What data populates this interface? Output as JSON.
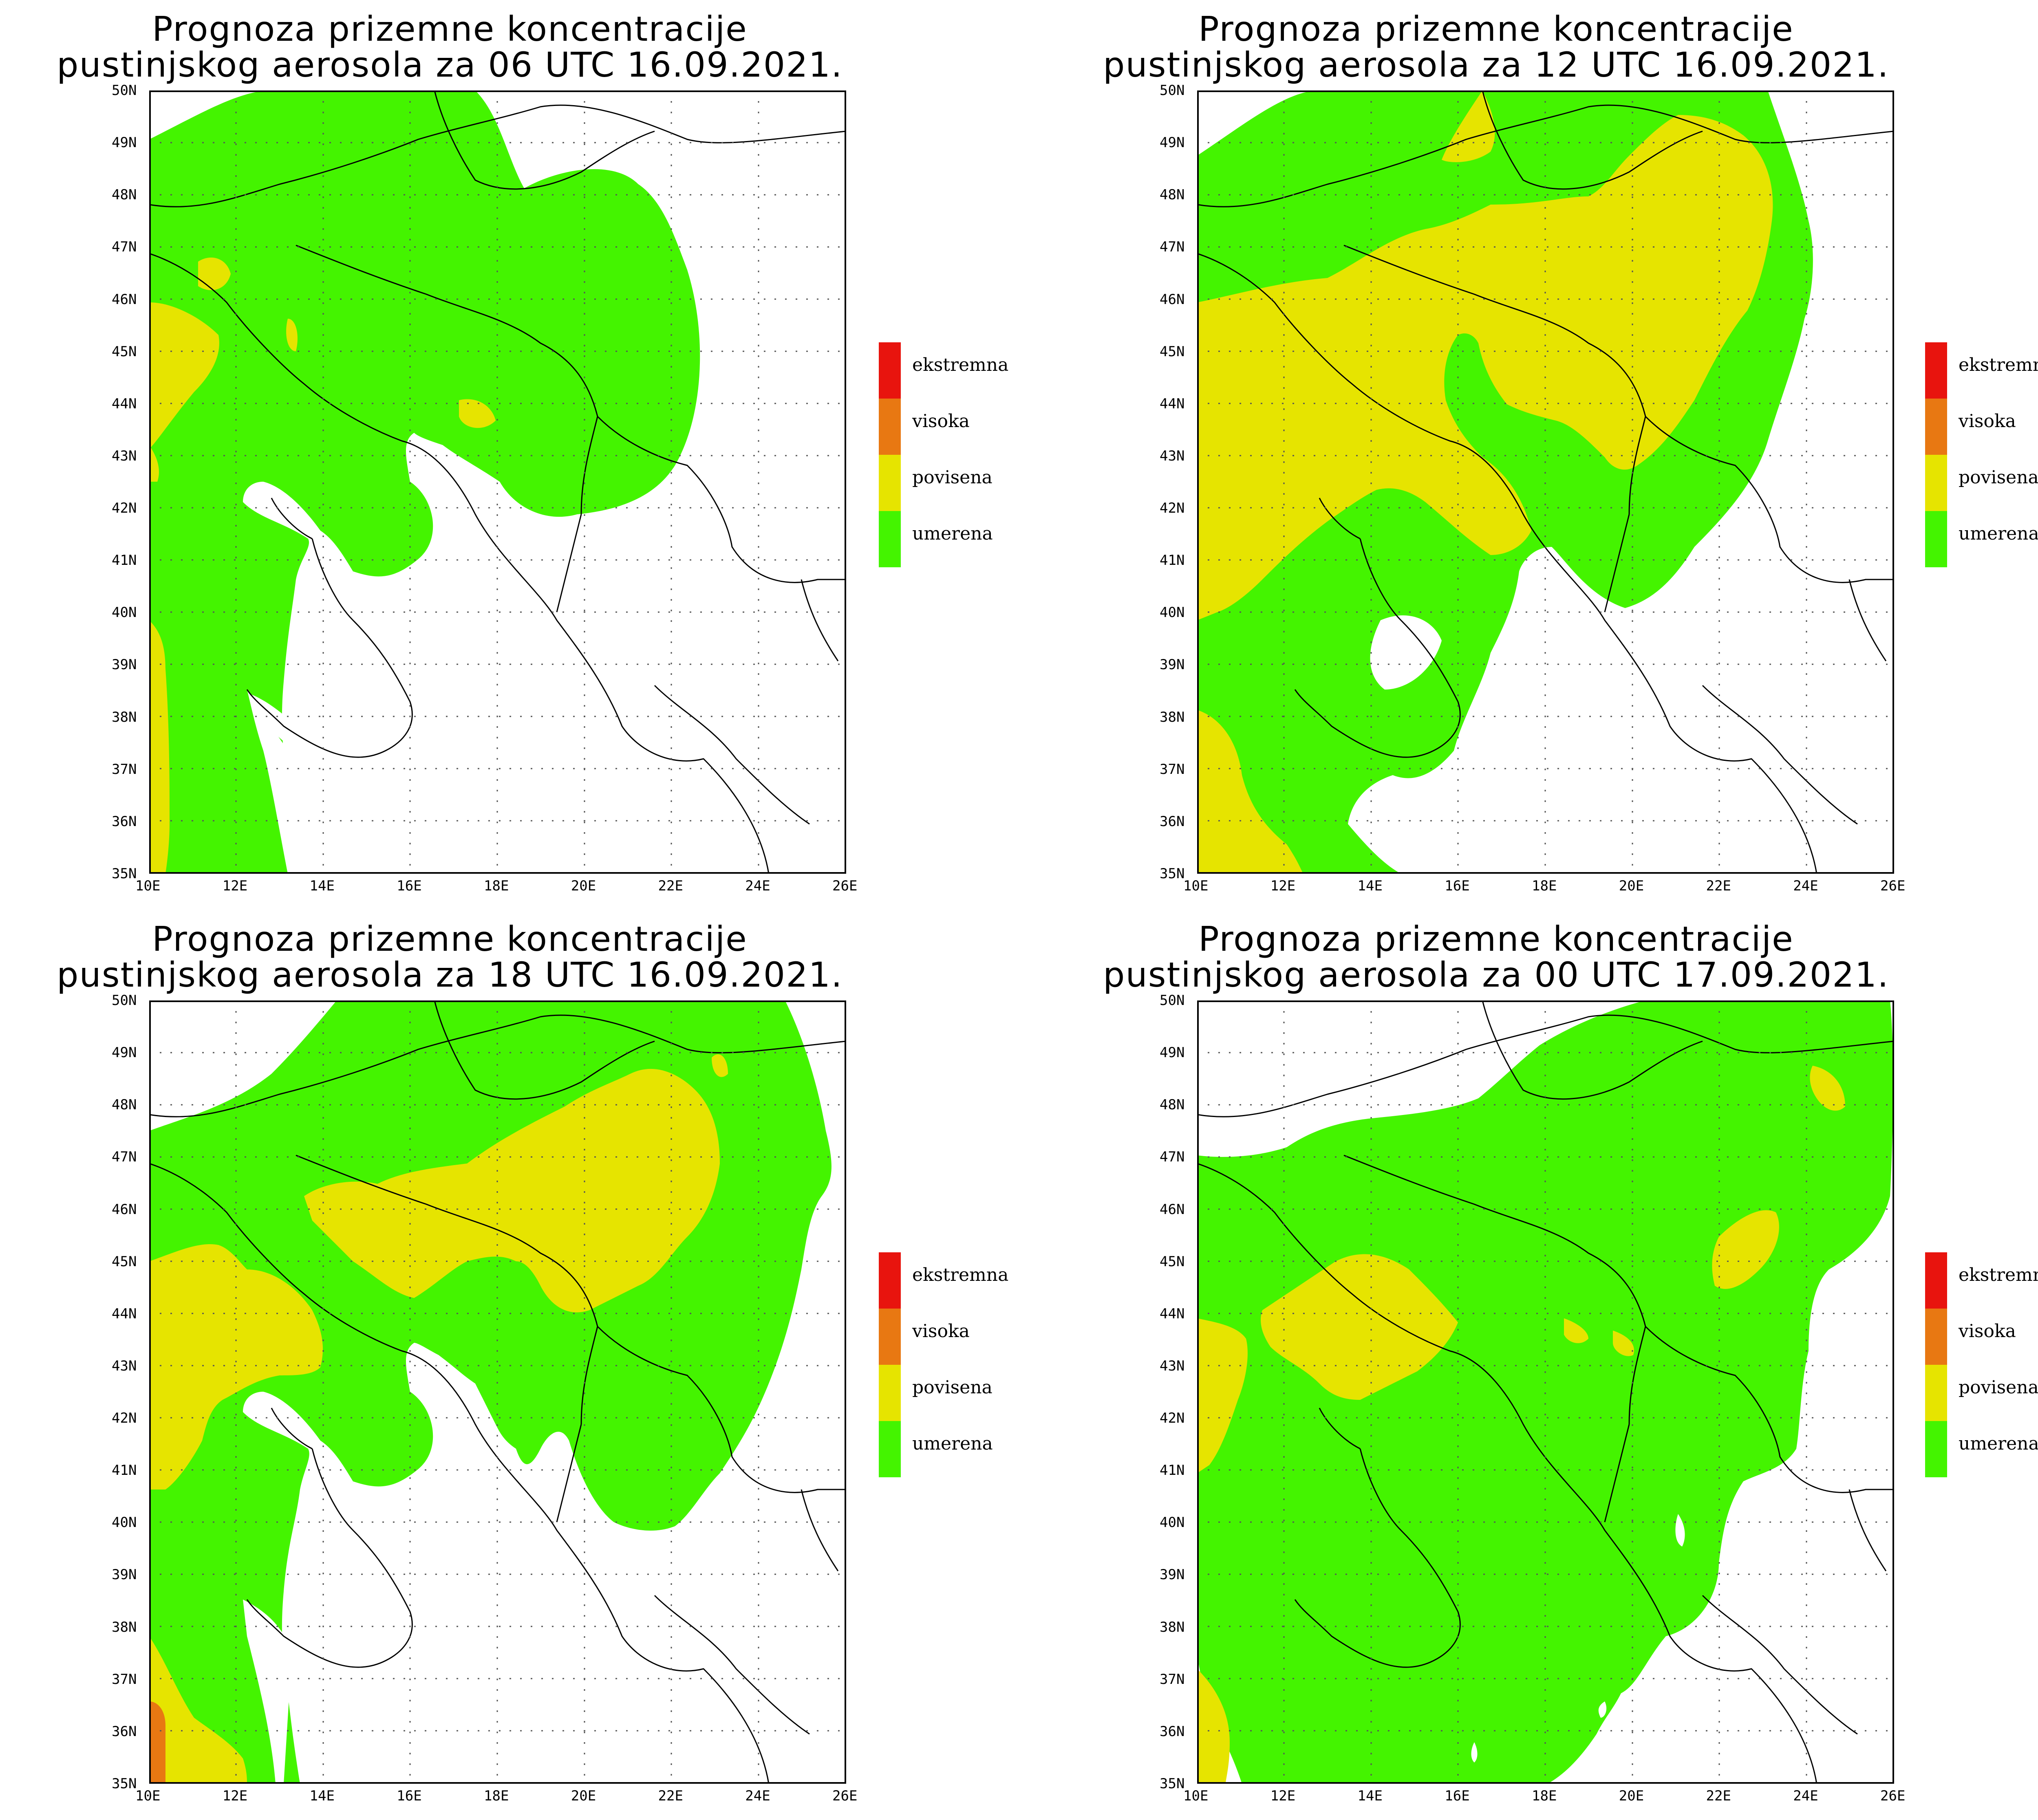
{
  "legend": {
    "items": [
      {
        "label": "ekstremna",
        "color": "#e8140e"
      },
      {
        "label": "visoka",
        "color": "#e87812"
      },
      {
        "label": "povisena",
        "color": "#e6e400"
      },
      {
        "label": "umerena",
        "color": "#44f400"
      }
    ]
  },
  "axes": {
    "lat_labels": [
      "35N",
      "36N",
      "37N",
      "38N",
      "39N",
      "40N",
      "41N",
      "42N",
      "43N",
      "44N",
      "45N",
      "46N",
      "47N",
      "48N",
      "49N",
      "50N"
    ],
    "lon_labels": [
      "10E",
      "12E",
      "14E",
      "16E",
      "18E",
      "20E",
      "22E",
      "24E",
      "26E"
    ],
    "lat_range": [
      35,
      50
    ],
    "lon_range": [
      10,
      26
    ],
    "grid": "dotted"
  },
  "panels": [
    {
      "title_line1": "Prognoza prizemne koncentracije",
      "title_line2": "pustinjskog aerosola za 06 UTC 16.09.2021.",
      "dominant_category": "umerena",
      "elevated_areas": "isolated patches"
    },
    {
      "title_line1": "Prognoza prizemne koncentracije",
      "title_line2": "pustinjskog aerosola za 12 UTC 16.09.2021.",
      "dominant_category": "povisena",
      "elevated_areas": "widespread"
    },
    {
      "title_line1": "Prognoza prizemne koncentracije",
      "title_line2": "pustinjskog aerosola za 18 UTC 16.09.2021.",
      "dominant_category": "umerena",
      "elevated_areas": "central band"
    },
    {
      "title_line1": "Prognoza prizemne koncentracije",
      "title_line2": "pustinjskog aerosola za 00 UTC 17.09.2021.",
      "dominant_category": "umerena",
      "elevated_areas": "scattered"
    }
  ]
}
